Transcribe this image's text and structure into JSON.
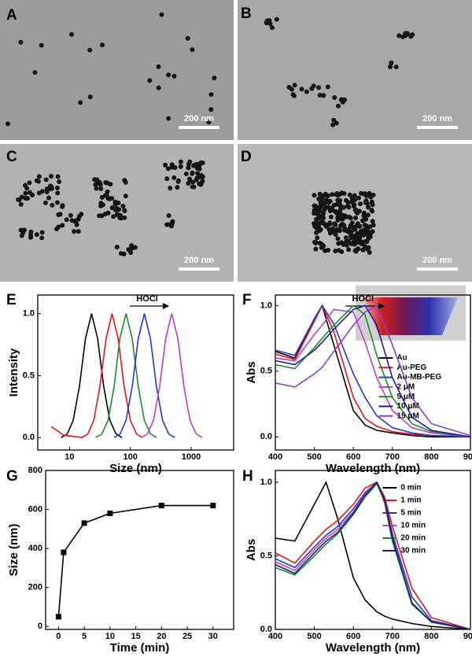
{
  "images": [
    {
      "label": "A",
      "scale_bar": "200 nm"
    },
    {
      "label": "B",
      "scale_bar": "200 nm"
    },
    {
      "label": "C",
      "scale_bar": "200 nm"
    },
    {
      "label": "D",
      "scale_bar": "200 nm"
    }
  ],
  "chart_data": [
    {
      "type": "line",
      "panel": "E",
      "xlabel": "Size (nm)",
      "ylabel": "Intensity",
      "annotation": "HOCl",
      "xscale": "log",
      "xlim": [
        3,
        5000
      ],
      "xticks": [
        10,
        100,
        1000
      ],
      "ylim": [
        -0.1,
        1.15
      ],
      "yticks": [
        {
          "value": 0,
          "label": "0.0"
        },
        {
          "value": 0.5,
          "label": "0.5"
        },
        {
          "value": 1,
          "label": "1.0"
        }
      ],
      "series": [
        {
          "color": "#000000",
          "x": [
            7.3,
            9.2,
            11.5,
            14.5,
            18.3,
            23,
            29,
            36.5,
            46,
            58,
            73
          ],
          "values": [
            0.0,
            0.03,
            0.14,
            0.41,
            0.8,
            1,
            0.8,
            0.41,
            0.14,
            0.03,
            0.0
          ]
        },
        {
          "color": "#e8101a",
          "x": [
            5,
            8,
            16,
            20,
            25,
            31.5,
            40,
            50,
            63,
            79,
            100,
            126,
            158
          ],
          "values": [
            0.09,
            0.02,
            0.0,
            0.03,
            0.14,
            0.41,
            0.8,
            1,
            0.8,
            0.41,
            0.14,
            0.03,
            0.0
          ]
        },
        {
          "color": "#1a8a2a",
          "x": [
            27,
            34,
            43,
            54,
            67,
            85,
            107,
            135,
            170,
            214,
            269
          ],
          "values": [
            0.0,
            0.03,
            0.14,
            0.41,
            0.8,
            1,
            0.8,
            0.41,
            0.14,
            0.03,
            0.0
          ]
        },
        {
          "color": "#2238c8",
          "x": [
            54,
            68,
            85,
            107,
            135,
            170,
            214,
            269,
            339,
            427,
            537
          ],
          "values": [
            0.0,
            0.03,
            0.14,
            0.41,
            0.8,
            1,
            0.8,
            0.41,
            0.14,
            0.03,
            0.0
          ]
        },
        {
          "color": "#c23cc2",
          "x": [
            152,
            191,
            240,
            303,
            381,
            480,
            604,
            761,
            958,
            1206,
            1518
          ],
          "values": [
            0.0,
            0.03,
            0.14,
            0.41,
            0.8,
            1,
            0.8,
            0.41,
            0.14,
            0.03,
            0.0
          ]
        }
      ]
    },
    {
      "type": "line",
      "panel": "F",
      "xlabel": "Wavelength (nm)",
      "ylabel": "Abs",
      "annotation": "HOCl",
      "legend": "right",
      "xlim": [
        400,
        900
      ],
      "xticks": [
        400,
        500,
        600,
        700,
        800,
        900
      ],
      "ylim": [
        -0.1,
        1.08
      ],
      "yticks": [
        {
          "value": 0,
          "label": "0.0"
        },
        {
          "value": 0.5,
          "label": "0.5"
        },
        {
          "value": 1,
          "label": "1.0"
        }
      ],
      "x": [
        400,
        450,
        500,
        520,
        550,
        600,
        630,
        660,
        700,
        750,
        800,
        900
      ],
      "series": [
        {
          "name": "Au",
          "color": "#000000",
          "values": [
            0.65,
            0.6,
            0.9,
            1.0,
            0.7,
            0.2,
            0.09,
            0.05,
            0.03,
            0.01,
            0.0,
            0.0
          ]
        },
        {
          "name": "Au-PEG",
          "color": "#e8101a",
          "values": [
            0.63,
            0.59,
            0.88,
            1.0,
            0.8,
            0.3,
            0.14,
            0.08,
            0.04,
            0.02,
            0.01,
            0.0
          ]
        },
        {
          "name": "Au-MB-PEG",
          "color": "#2238c8",
          "values": [
            0.66,
            0.62,
            0.9,
            1.0,
            0.86,
            0.48,
            0.3,
            0.16,
            0.07,
            0.03,
            0.01,
            0.0
          ]
        },
        {
          "name": "2 μM",
          "color": "#c23cc2",
          "values": [
            0.6,
            0.58,
            0.78,
            0.85,
            0.97,
            0.95,
            0.72,
            0.45,
            0.2,
            0.07,
            0.03,
            0.0
          ]
        },
        {
          "name": "5 μM",
          "color": "#1a8a2a",
          "values": [
            0.55,
            0.52,
            0.68,
            0.75,
            0.85,
            1.0,
            0.93,
            0.62,
            0.3,
            0.1,
            0.04,
            0.0
          ]
        },
        {
          "name": "10 μM",
          "color": "#1c1c9c",
          "values": [
            0.58,
            0.55,
            0.66,
            0.72,
            0.82,
            0.97,
            1.0,
            0.85,
            0.45,
            0.15,
            0.05,
            0.0
          ]
        },
        {
          "name": "15 μM",
          "color": "#8a3cc8",
          "values": [
            0.41,
            0.38,
            0.48,
            0.53,
            0.65,
            0.85,
            0.95,
            1.0,
            0.7,
            0.3,
            0.1,
            0.01
          ]
        }
      ]
    },
    {
      "type": "line",
      "panel": "G",
      "xlabel": "Time (min)",
      "ylabel": "Size (nm)",
      "marker": "square",
      "xlim": [
        -2.5,
        34
      ],
      "xticks": [
        0,
        5,
        10,
        15,
        20,
        25,
        30
      ],
      "ylim": [
        -15,
        800
      ],
      "yticks": [
        0,
        200,
        400,
        600,
        800
      ],
      "x": [
        0,
        1,
        5,
        10,
        20,
        30
      ],
      "series": [
        {
          "color": "#000000",
          "values": [
            50,
            380,
            530,
            580,
            620,
            620
          ]
        }
      ]
    },
    {
      "type": "line",
      "panel": "H",
      "xlabel": "Wavelength (nm)",
      "ylabel": "Abs",
      "legend": "upper right",
      "xlim": [
        400,
        900
      ],
      "xticks": [
        400,
        500,
        600,
        700,
        800,
        900
      ],
      "ylim": [
        0,
        1.08
      ],
      "yticks": [
        {
          "value": 0,
          "label": "0.0"
        },
        {
          "value": 0.5,
          "label": "0.5"
        },
        {
          "value": 1,
          "label": "1.0"
        }
      ],
      "x": [
        400,
        450,
        500,
        530,
        560,
        600,
        630,
        660,
        680,
        700,
        750,
        800,
        900
      ],
      "series": [
        {
          "name": "0 min",
          "color": "#000000",
          "values": [
            0.62,
            0.6,
            0.85,
            1.0,
            0.75,
            0.35,
            0.2,
            0.12,
            0.09,
            0.07,
            0.04,
            0.02,
            0.0
          ]
        },
        {
          "name": "1 min",
          "color": "#e8101a",
          "values": [
            0.52,
            0.45,
            0.6,
            0.68,
            0.74,
            0.85,
            0.96,
            1.0,
            0.9,
            0.7,
            0.28,
            0.08,
            0.0
          ]
        },
        {
          "name": "5 min",
          "color": "#2238c8",
          "values": [
            0.48,
            0.42,
            0.56,
            0.64,
            0.7,
            0.82,
            0.93,
            1.0,
            0.88,
            0.65,
            0.22,
            0.06,
            0.0
          ]
        },
        {
          "name": "10 min",
          "color": "#c23cc2",
          "values": [
            0.46,
            0.4,
            0.54,
            0.62,
            0.68,
            0.8,
            0.92,
            1.0,
            0.86,
            0.6,
            0.18,
            0.05,
            0.0
          ]
        },
        {
          "name": "20 min",
          "color": "#1a8a2a",
          "values": [
            0.42,
            0.37,
            0.5,
            0.58,
            0.65,
            0.78,
            0.9,
            0.99,
            0.87,
            0.6,
            0.17,
            0.05,
            0.0
          ]
        },
        {
          "name": "30 min",
          "color": "#1c1c6c",
          "values": [
            0.44,
            0.38,
            0.52,
            0.6,
            0.66,
            0.79,
            0.91,
            1.0,
            0.88,
            0.62,
            0.18,
            0.05,
            0.0
          ]
        }
      ]
    }
  ]
}
